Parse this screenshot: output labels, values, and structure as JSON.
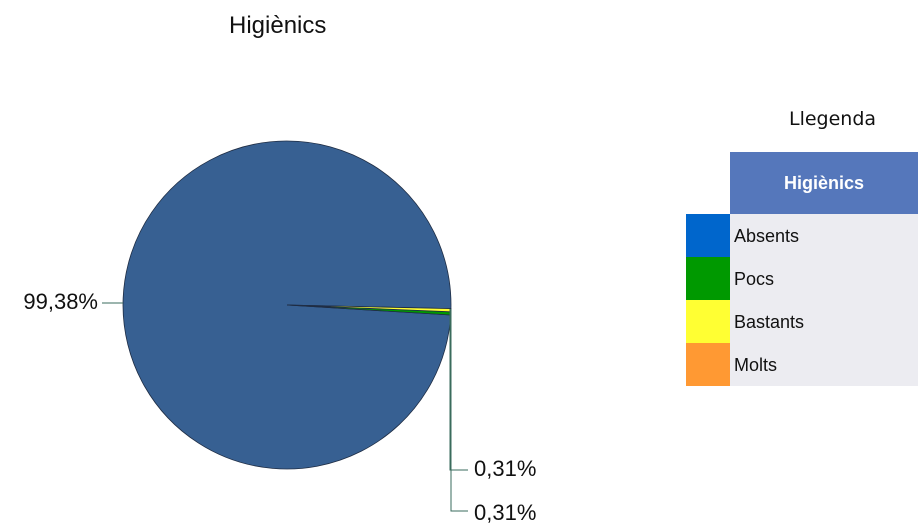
{
  "chart_data": {
    "type": "pie",
    "title": "Higiènics",
    "slices": [
      {
        "label": "Absents",
        "value": 99.38,
        "display": "99,38%",
        "color": "#376092"
      },
      {
        "label": "Pocs",
        "value": 0.31,
        "display": "0,31%",
        "color": "#009900"
      },
      {
        "label": "Bastants",
        "value": 0.31,
        "display": "0,31%",
        "color": "#ffff33"
      },
      {
        "label": "Molts",
        "value": 0.0,
        "display": "",
        "color": "#ff9933"
      }
    ],
    "legend_placement": "right"
  },
  "legend": {
    "title": "Llegenda",
    "header": "Higiènics",
    "header_color": "#5577bb",
    "items": [
      {
        "label": "Absents",
        "color": "#0066cc"
      },
      {
        "label": "Pocs",
        "color": "#009900"
      },
      {
        "label": "Bastants",
        "color": "#ffff33"
      },
      {
        "label": "Molts",
        "color": "#ff9933"
      }
    ]
  }
}
